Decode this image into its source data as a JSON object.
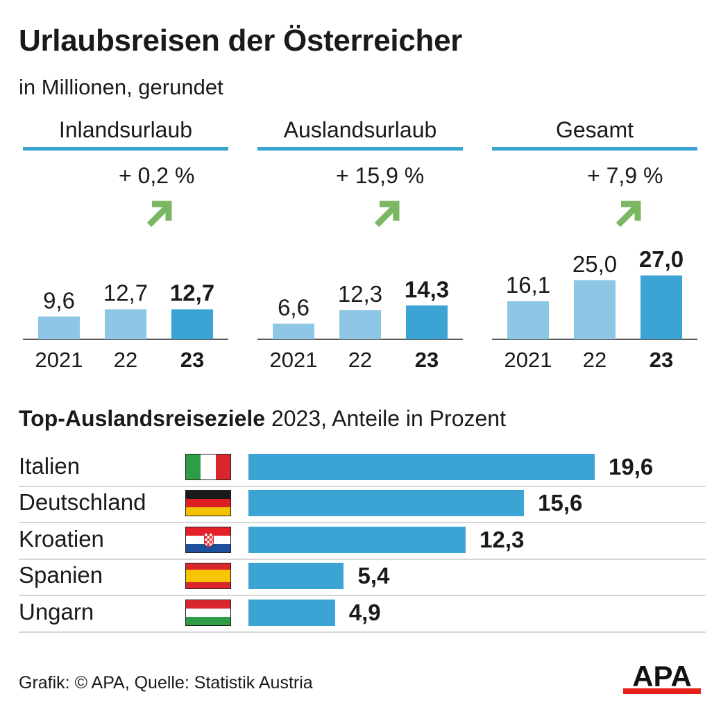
{
  "title": "Urlaubsreisen der Österreicher",
  "subtitle": "in Millionen, gerundet",
  "colors": {
    "accent": "#3ca4d4",
    "light": "#8ec6e6",
    "arrow": "#7bb662",
    "brand_red": "#e5211b"
  },
  "chart_data": [
    {
      "type": "bar",
      "title": "Inlandsurlaub",
      "change": "+ 0,2 %",
      "categories": [
        "2021",
        "22",
        "23"
      ],
      "values": [
        9.6,
        12.7,
        12.7
      ],
      "labels": [
        "9,6",
        "12,7",
        "12,7"
      ],
      "ylim": [
        0,
        27
      ],
      "ylabel": "in Millionen"
    },
    {
      "type": "bar",
      "title": "Auslandsurlaub",
      "change": "+ 15,9 %",
      "categories": [
        "2021",
        "22",
        "23"
      ],
      "values": [
        6.6,
        12.3,
        14.3
      ],
      "labels": [
        "6,6",
        "12,3",
        "14,3"
      ],
      "ylim": [
        0,
        27
      ],
      "ylabel": "in Millionen"
    },
    {
      "type": "bar",
      "title": "Gesamt",
      "change": "+ 7,9 %",
      "categories": [
        "2021",
        "22",
        "23"
      ],
      "values": [
        16.1,
        25.0,
        27.0
      ],
      "labels": [
        "16,1",
        "25,0",
        "27,0"
      ],
      "ylim": [
        0,
        27
      ],
      "ylabel": "in Millionen"
    },
    {
      "type": "bar",
      "orientation": "horizontal",
      "title": "Top-Auslandsreiseziele",
      "subtitle": "2023, Anteile in Prozent",
      "categories": [
        "Italien",
        "Deutschland",
        "Kroatien",
        "Spanien",
        "Ungarn"
      ],
      "values": [
        19.6,
        15.6,
        12.3,
        5.4,
        4.9
      ],
      "labels": [
        "19,6",
        "15,6",
        "12,3",
        "5,4",
        "4,9"
      ],
      "flags": [
        "italy-flag-icon",
        "germany-flag-icon",
        "croatia-flag-icon",
        "spain-flag-icon",
        "hungary-flag-icon"
      ],
      "xlim": [
        0,
        19.6
      ]
    }
  ],
  "footer": "Grafik: © APA, Quelle: Statistik Austria",
  "logo": "APA"
}
